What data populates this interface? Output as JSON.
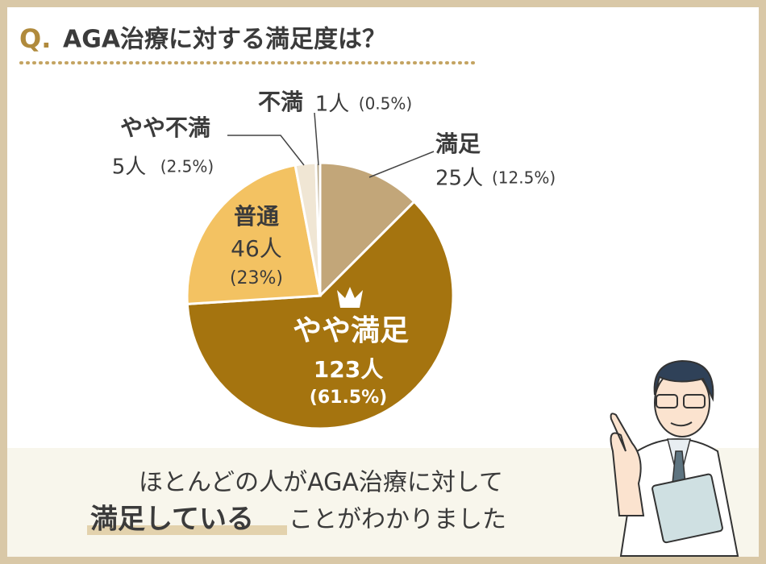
{
  "chart_data": {
    "type": "pie",
    "title_prefix": "Q.",
    "title": "AGA治療に対する満足度は？",
    "categories": [
      "満足",
      "やや満足",
      "普通",
      "やや不満",
      "不満"
    ],
    "values": [
      12.5,
      61.5,
      23,
      2.5,
      0.5
    ],
    "value_labels": [
      "(12.5%)",
      "(61.5%)",
      "(23%)",
      "(2.5%)",
      "(0.5%)"
    ],
    "count_labels": [
      "25人",
      "123人",
      "46人",
      "5人",
      "1人"
    ],
    "colors": [
      "#c2a679",
      "#a5740f",
      "#f3c262",
      "#f0e6d4",
      "#b9aa8c"
    ],
    "footer": {
      "line1": "ほとんどの人がAGA治療に対して",
      "emphasis": "満足している",
      "rest": "ことがわかりました"
    }
  }
}
